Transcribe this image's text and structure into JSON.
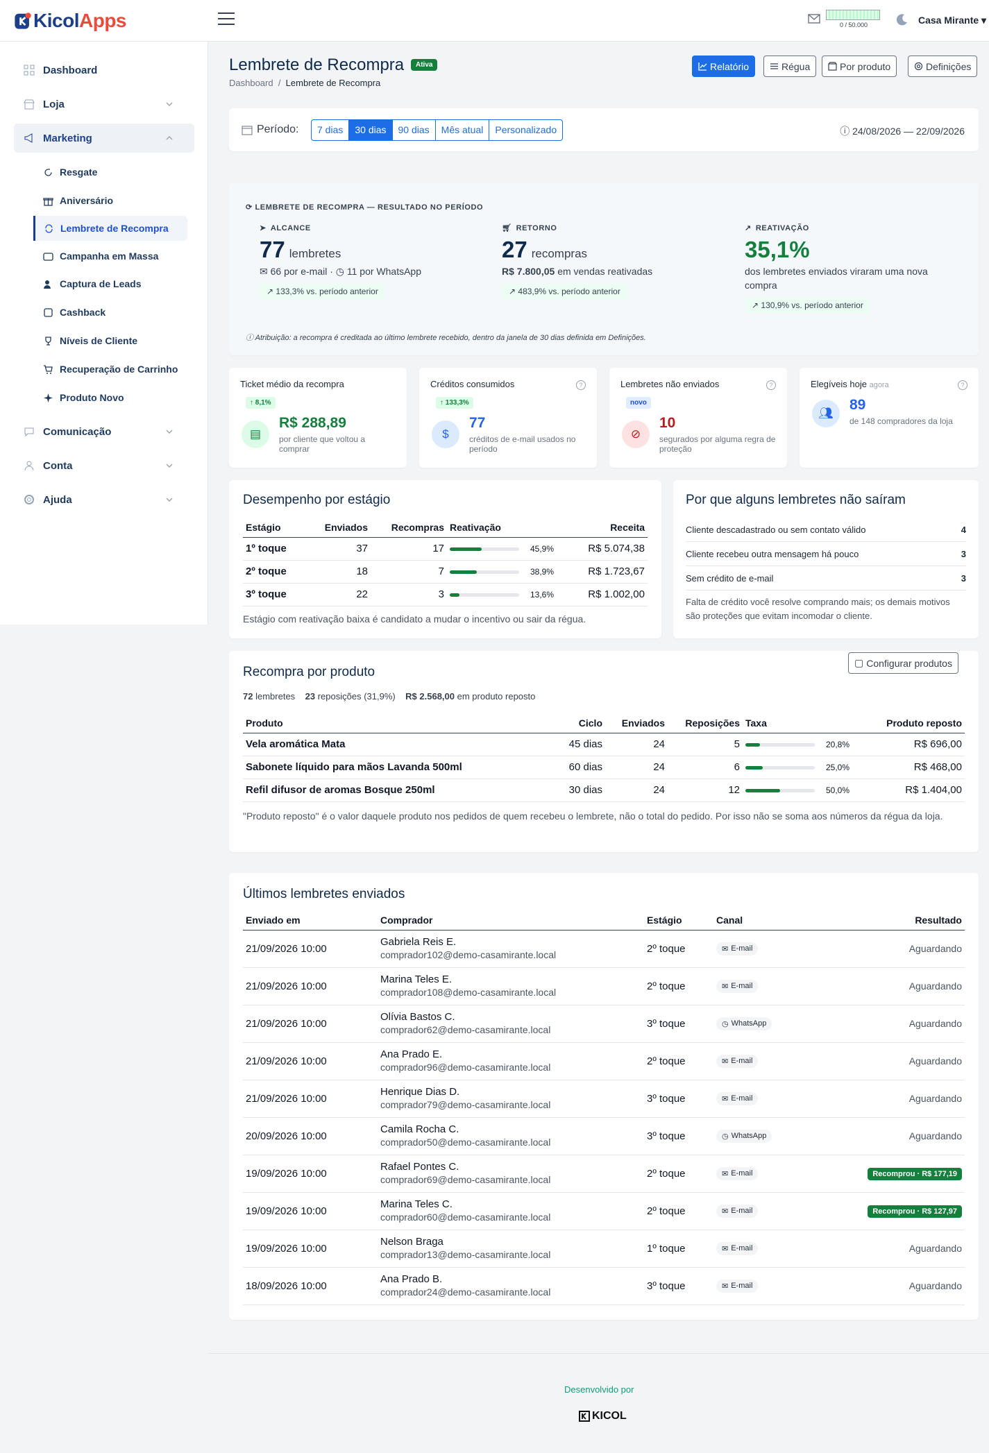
{
  "brand": {
    "name_a": "Kicol",
    "name_b": "Apps"
  },
  "topbar": {
    "credits": "0 / 50.000",
    "store": "Casa Mirante"
  },
  "sidebar": {
    "items": [
      {
        "label": "Dashboard",
        "icon": "grid-icon"
      },
      {
        "label": "Loja",
        "icon": "store-icon"
      },
      {
        "label": "Marketing",
        "icon": "megaphone-icon"
      },
      {
        "label": "Comunicação",
        "icon": "chat-icon"
      },
      {
        "label": "Conta",
        "icon": "user-icon"
      },
      {
        "label": "Ajuda",
        "icon": "lifebuoy-icon"
      }
    ],
    "marketing_sub": [
      "Resgate",
      "Aniversário",
      "Lembrete de Recompra",
      "Campanha em Massa",
      "Captura de Leads",
      "Cashback",
      "Níveis de Cliente",
      "Recuperação de Carrinho",
      "Produto Novo"
    ]
  },
  "header": {
    "title": "Lembrete de Recompra",
    "status": "Ativa",
    "breadcrumb_home": "Dashboard",
    "breadcrumb_current": "Lembrete de Recompra",
    "buttons": [
      "Relatório",
      "Régua",
      "Por produto",
      "Definições"
    ]
  },
  "period": {
    "label": "Período:",
    "options": [
      "7 dias",
      "30 dias",
      "90 dias",
      "Mês atual",
      "Personalizado"
    ],
    "selected": "30 dias",
    "range": "24/08/2026 — 22/09/2026"
  },
  "summary": {
    "heading": "LEMBRETE DE RECOMPRA — RESULTADO NO PERÍODO",
    "reach": {
      "label": "ALCANCE",
      "value": "77",
      "unit": "lembretes",
      "detail_email": "66 por e-mail",
      "detail_wa": "11 por WhatsApp",
      "delta": "133,3% vs. período anterior"
    },
    "return": {
      "label": "RETORNO",
      "value": "27",
      "unit": "recompras",
      "amount": "R$ 7.800,05",
      "amount_suffix": "em vendas reativadas",
      "delta": "483,9% vs. período anterior"
    },
    "reactivation": {
      "label": "REATIVAÇÃO",
      "value": "35,1%",
      "detail": "dos lembretes enviados viraram uma nova compra",
      "delta": "130,9% vs. período anterior"
    },
    "note": "Atribuição: a recompra é creditada ao último lembrete recebido, dentro da janela de 30 dias definida em Definições."
  },
  "mini": [
    {
      "title": "Ticket médio da recompra",
      "pill": "↑ 8,1%",
      "value": "R$ 288,89",
      "desc": "por cliente que voltou a comprar",
      "color": "#15803d"
    },
    {
      "title": "Créditos consumidos",
      "pill": "↑ 133,3%",
      "value": "77",
      "desc": "créditos de e-mail usados no período",
      "color": "#2563eb"
    },
    {
      "title": "Lembretes não enviados",
      "pill": "novo",
      "value": "10",
      "desc": "segurados por alguma regra de proteção",
      "color": "#b91c1c"
    },
    {
      "title": "Elegíveis hoje",
      "title_suffix": "agora",
      "value": "89",
      "desc": "de 148 compradores da loja",
      "color": "#2563eb"
    }
  ],
  "stages": {
    "title": "Desempenho por estágio",
    "columns": [
      "Estágio",
      "Enviados",
      "Recompras",
      "Reativação",
      "Receita"
    ],
    "rows": [
      {
        "stage": "1º toque",
        "sent": "37",
        "rebuys": "17",
        "rate": 45.9,
        "rate_label": "45,9%",
        "revenue": "R$ 5.074,38"
      },
      {
        "stage": "2º toque",
        "sent": "18",
        "rebuys": "7",
        "rate": 38.9,
        "rate_label": "38,9%",
        "revenue": "R$ 1.723,67"
      },
      {
        "stage": "3º toque",
        "sent": "22",
        "rebuys": "3",
        "rate": 13.6,
        "rate_label": "13,6%",
        "revenue": "R$ 1.002,00"
      }
    ],
    "note": "Estágio com reativação baixa é candidato a mudar o incentivo ou sair da régua."
  },
  "why": {
    "title": "Por que alguns lembretes não saíram",
    "rows": [
      {
        "reason": "Cliente descadastrado ou sem contato válido",
        "count": "4"
      },
      {
        "reason": "Cliente recebeu outra mensagem há pouco",
        "count": "3"
      },
      {
        "reason": "Sem crédito de e-mail",
        "count": "3"
      }
    ],
    "note": "Falta de crédito você resolve comprando mais; os demais motivos são proteções que evitam incomodar o cliente."
  },
  "products": {
    "title": "Recompra por produto",
    "config_button": "Configurar produtos",
    "stats_a_num": "72",
    "stats_a": "lembretes",
    "stats_b_num": "23",
    "stats_b": "reposições (31,9%)",
    "stats_c_num": "R$ 2.568,00",
    "stats_c": "em produto reposto",
    "columns": [
      "Produto",
      "Ciclo",
      "Enviados",
      "Reposições",
      "Taxa",
      "Produto reposto"
    ],
    "rows": [
      {
        "name": "Vela aromática Mata",
        "cycle": "45 dias",
        "sent": "24",
        "repos": "5",
        "rate": 20.8,
        "rate_label": "20,8%",
        "value": "R$ 696,00"
      },
      {
        "name": "Sabonete líquido para mãos Lavanda 500ml",
        "cycle": "60 dias",
        "sent": "24",
        "repos": "6",
        "rate": 25.0,
        "rate_label": "25,0%",
        "value": "R$ 468,00"
      },
      {
        "name": "Refil difusor de aromas Bosque 250ml",
        "cycle": "30 dias",
        "sent": "24",
        "repos": "12",
        "rate": 50.0,
        "rate_label": "50,0%",
        "value": "R$ 1.404,00"
      }
    ],
    "note": "\"Produto reposto\" é o valor daquele produto nos pedidos de quem recebeu o lembrete, não o total do pedido. Por isso não se soma aos números da régua da loja."
  },
  "recent": {
    "title": "Últimos lembretes enviados",
    "columns": [
      "Enviado em",
      "Comprador",
      "Estágio",
      "Canal",
      "Resultado"
    ],
    "rows": [
      {
        "date": "21/09/2026 10:00",
        "name": "Gabriela Reis E.",
        "email": "comprador102@demo-casamirante.local",
        "stage": "2º toque",
        "channel": "E-mail",
        "result": "Aguardando",
        "ok": false
      },
      {
        "date": "21/09/2026 10:00",
        "name": "Marina Teles E.",
        "email": "comprador108@demo-casamirante.local",
        "stage": "2º toque",
        "channel": "E-mail",
        "result": "Aguardando",
        "ok": false
      },
      {
        "date": "21/09/2026 10:00",
        "name": "Olívia Bastos C.",
        "email": "comprador62@demo-casamirante.local",
        "stage": "3º toque",
        "channel": "WhatsApp",
        "result": "Aguardando",
        "ok": false
      },
      {
        "date": "21/09/2026 10:00",
        "name": "Ana Prado E.",
        "email": "comprador96@demo-casamirante.local",
        "stage": "2º toque",
        "channel": "E-mail",
        "result": "Aguardando",
        "ok": false
      },
      {
        "date": "21/09/2026 10:00",
        "name": "Henrique Dias D.",
        "email": "comprador79@demo-casamirante.local",
        "stage": "3º toque",
        "channel": "E-mail",
        "result": "Aguardando",
        "ok": false
      },
      {
        "date": "20/09/2026 10:00",
        "name": "Camila Rocha C.",
        "email": "comprador50@demo-casamirante.local",
        "stage": "3º toque",
        "channel": "WhatsApp",
        "result": "Aguardando",
        "ok": false
      },
      {
        "date": "19/09/2026 10:00",
        "name": "Rafael Pontes C.",
        "email": "comprador69@demo-casamirante.local",
        "stage": "2º toque",
        "channel": "E-mail",
        "result": "Recomprou · R$ 177,19",
        "ok": true
      },
      {
        "date": "19/09/2026 10:00",
        "name": "Marina Teles C.",
        "email": "comprador60@demo-casamirante.local",
        "stage": "2º toque",
        "channel": "E-mail",
        "result": "Recomprou · R$ 127,97",
        "ok": true
      },
      {
        "date": "19/09/2026 10:00",
        "name": "Nelson Braga",
        "email": "comprador13@demo-casamirante.local",
        "stage": "1º toque",
        "channel": "E-mail",
        "result": "Aguardando",
        "ok": false
      },
      {
        "date": "18/09/2026 10:00",
        "name": "Ana Prado B.",
        "email": "comprador24@demo-casamirante.local",
        "stage": "3º toque",
        "channel": "E-mail",
        "result": "Aguardando",
        "ok": false
      }
    ]
  },
  "footer": {
    "dev": "Desenvolvido por",
    "brand": "KICOL"
  }
}
